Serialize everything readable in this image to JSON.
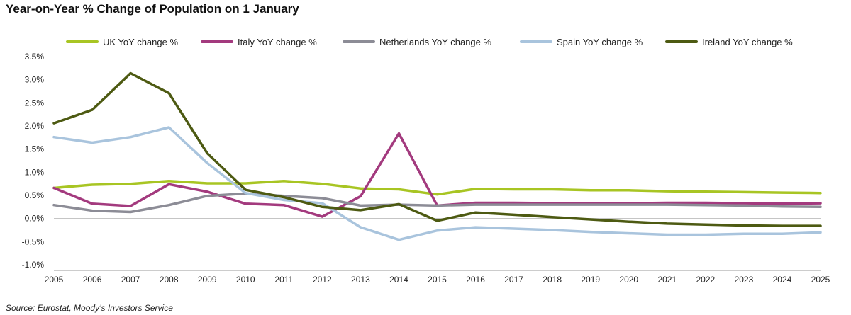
{
  "chart_data": {
    "type": "line",
    "title": "Year-on-Year % Change of Population on 1 January",
    "source": "Source: Eurostat, Moody’s Investors Service",
    "xlabel": "",
    "ylabel": "",
    "x": [
      "2005",
      "2006",
      "2007",
      "2008",
      "2009",
      "2010",
      "2011",
      "2012",
      "2013",
      "2014",
      "2015",
      "2016",
      "2017",
      "2018",
      "2019",
      "2020",
      "2021",
      "2022",
      "2023",
      "2024",
      "2025"
    ],
    "ylim": [
      -1.0,
      3.5
    ],
    "yticks": [
      3.5,
      3.0,
      2.5,
      2.0,
      1.5,
      1.0,
      0.5,
      0.0,
      -0.5,
      -1.0
    ],
    "ytick_labels": [
      "3.5%",
      "3.0%",
      "2.5%",
      "2.0%",
      "1.5%",
      "1.0%",
      "0.5%",
      "0.0%",
      "-0.5%",
      "-1.0%"
    ],
    "legend_position": "top",
    "series": [
      {
        "name": "UK YoY change %",
        "color": "#a8c523",
        "values": [
          0.66,
          0.73,
          0.75,
          0.81,
          0.76,
          0.76,
          0.81,
          0.75,
          0.65,
          0.63,
          0.52,
          0.64,
          0.63,
          0.63,
          0.61,
          0.61,
          0.59,
          0.58,
          0.57,
          0.56,
          0.55
        ]
      },
      {
        "name": "Italy YoY change %",
        "color": "#a33a7e",
        "values": [
          0.66,
          0.32,
          0.27,
          0.74,
          0.58,
          0.32,
          0.29,
          0.04,
          0.48,
          1.84,
          0.28,
          0.34,
          0.34,
          0.33,
          0.33,
          0.33,
          0.34,
          0.34,
          0.33,
          0.32,
          0.33
        ]
      },
      {
        "name": "Netherlands YoY change %",
        "color": "#8c8c96",
        "values": [
          0.29,
          0.17,
          0.14,
          0.29,
          0.49,
          0.54,
          0.49,
          0.44,
          0.28,
          0.3,
          0.28,
          0.3,
          0.3,
          0.3,
          0.3,
          0.3,
          0.3,
          0.29,
          0.28,
          0.26,
          0.25
        ]
      },
      {
        "name": "Spain YoY change %",
        "color": "#a9c4dd",
        "values": [
          1.76,
          1.64,
          1.76,
          1.97,
          1.2,
          0.55,
          0.4,
          0.33,
          -0.19,
          -0.46,
          -0.26,
          -0.19,
          -0.22,
          -0.25,
          -0.29,
          -0.32,
          -0.35,
          -0.35,
          -0.33,
          -0.33,
          -0.3
        ]
      },
      {
        "name": "Ireland YoY change %",
        "color": "#4d5a12",
        "values": [
          2.06,
          2.35,
          3.14,
          2.71,
          1.41,
          0.62,
          0.46,
          0.25,
          0.18,
          0.31,
          -0.05,
          0.13,
          0.08,
          0.03,
          -0.02,
          -0.07,
          -0.11,
          -0.13,
          -0.15,
          -0.16,
          -0.16
        ]
      }
    ]
  }
}
